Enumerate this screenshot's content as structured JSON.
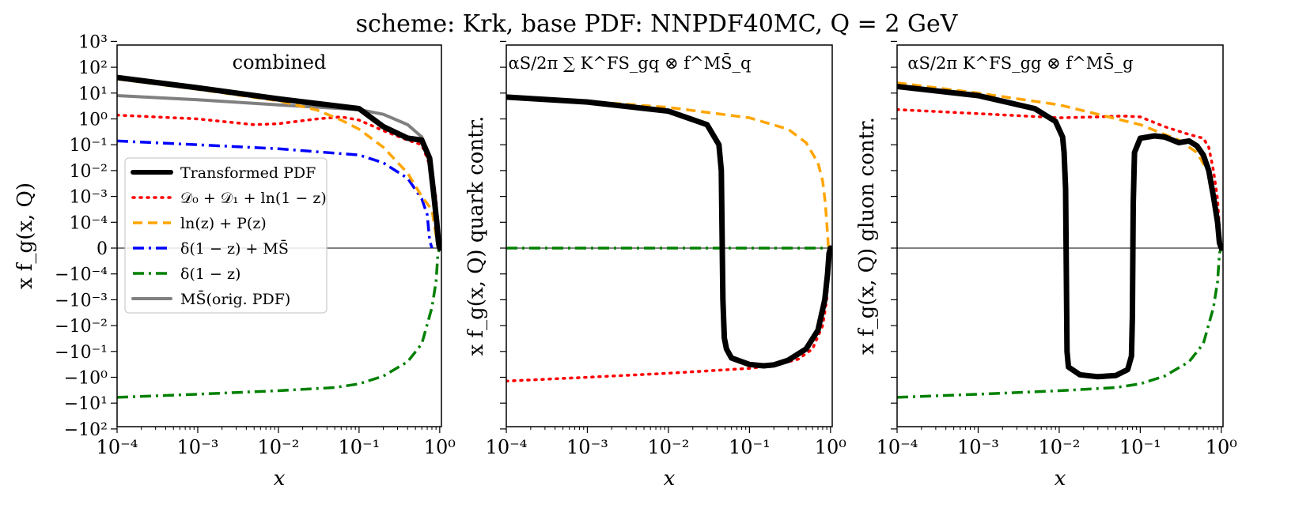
{
  "figure": {
    "title": "scheme: Krk, base PDF: NNPDF40MC, Q = 2 GeV"
  },
  "colors": {
    "transformed": "#000000",
    "d0d1": "#ff0000",
    "lnzpz": "#ffa500",
    "delta_msbar": "#0000ff",
    "delta": "#008000",
    "msbar": "#808080"
  },
  "chart_data": [
    {
      "type": "line",
      "panel": "left",
      "title": "combined",
      "xlabel": "x",
      "ylabel": "x f_g(x, Q)",
      "xscale": "log",
      "yscale": "symlog",
      "xlim": [
        0.0001,
        1.05
      ],
      "x_ticks": [
        "10⁻⁴",
        "10⁻³",
        "10⁻²",
        "10⁻¹",
        "10⁰"
      ],
      "y_ticks": [
        "10³",
        "10²",
        "10¹",
        "10⁰",
        "10⁻¹",
        "10⁻²",
        "10⁻³",
        "10⁻⁴",
        "0",
        "−10⁻⁴",
        "−10⁻³",
        "−10⁻²",
        "−10⁻¹",
        "−10⁰",
        "−10¹",
        "−10²"
      ],
      "legend_position": "center-left",
      "legend": [
        {
          "name": "Transformed PDF",
          "style": "solid-thick",
          "color_key": "transformed"
        },
        {
          "name": "𝒟₀ + 𝒟₁ + ln(1 − z)",
          "style": "dotted",
          "color_key": "d0d1"
        },
        {
          "name": "ln(z) + P(z)",
          "style": "dashed",
          "color_key": "lnzpz"
        },
        {
          "name": "δ(1 − z) + MS̄",
          "style": "dashdot",
          "color_key": "delta_msbar"
        },
        {
          "name": "δ(1 − z)",
          "style": "dashdot",
          "color_key": "delta"
        },
        {
          "name": "MS̄(orig. PDF)",
          "style": "solid",
          "color_key": "msbar"
        }
      ],
      "series": [
        {
          "key": "transformed",
          "x": [
            0.0001,
            0.001,
            0.01,
            0.1,
            0.2,
            0.4,
            0.6,
            0.75,
            0.85,
            0.92,
            0.96,
            0.98,
            1.0
          ],
          "y": [
            40,
            16,
            6,
            2.5,
            0.5,
            0.18,
            0.15,
            0.03,
            0.001,
            0.0001,
            3e-05,
            1e-05,
            0
          ]
        },
        {
          "key": "d0d1",
          "x": [
            0.0001,
            0.001,
            0.005,
            0.01,
            0.03,
            0.06,
            0.1,
            0.2,
            0.4,
            0.6,
            0.8,
            0.9,
            0.96,
            1.0
          ],
          "y": [
            1.4,
            1.0,
            0.6,
            0.65,
            1.0,
            1.2,
            0.9,
            0.35,
            0.15,
            0.1,
            0.01,
            0.0008,
            5e-05,
            0
          ]
        },
        {
          "key": "lnzpz",
          "x": [
            0.0001,
            0.001,
            0.01,
            0.03,
            0.06,
            0.1,
            0.2,
            0.4,
            0.6,
            0.8,
            0.9,
            0.95,
            1.0
          ],
          "y": [
            35,
            14,
            5,
            2.2,
            0.9,
            0.4,
            0.08,
            0.008,
            0.001,
            0.0003,
            5e-05,
            1e-05,
            0
          ]
        },
        {
          "key": "delta_msbar",
          "x": [
            0.0001,
            0.001,
            0.01,
            0.1,
            0.2,
            0.4,
            0.6,
            0.7,
            0.75,
            0.8
          ],
          "y": [
            0.14,
            0.1,
            0.07,
            0.04,
            0.02,
            0.005,
            0.0008,
            0.0002,
            3e-05,
            0
          ]
        },
        {
          "key": "delta",
          "x": [
            0.0001,
            0.001,
            0.01,
            0.05,
            0.1,
            0.2,
            0.4,
            0.6,
            0.8,
            0.9,
            0.95,
            1.0
          ],
          "y": [
            -6,
            -4.5,
            -3.3,
            -2.5,
            -1.8,
            -0.9,
            -0.25,
            -0.05,
            -0.002,
            -0.0002,
            -2e-05,
            0
          ]
        },
        {
          "key": "msbar",
          "x": [
            0.0001,
            0.001,
            0.01,
            0.1,
            0.2,
            0.4,
            0.6,
            0.75,
            0.85,
            0.95,
            1.0
          ],
          "y": [
            8,
            5.5,
            3.5,
            2.3,
            1.5,
            0.6,
            0.2,
            0.03,
            0.001,
            3e-05,
            0
          ]
        }
      ]
    },
    {
      "type": "line",
      "panel": "middle",
      "title": "αS/2π ∑ K^FS_gq ⊗ f^MS̄_q",
      "xlabel": "x",
      "ylabel": "x f_g(x, Q)  quark contr.",
      "xscale": "log",
      "yscale": "symlog",
      "xlim": [
        0.0001,
        1.05
      ],
      "x_ticks": [
        "10⁻⁴",
        "10⁻³",
        "10⁻²",
        "10⁻¹",
        "10⁰"
      ],
      "series": [
        {
          "key": "transformed",
          "x": [
            0.0001,
            0.001,
            0.01,
            0.03,
            0.042,
            0.045,
            0.047,
            0.049,
            0.052,
            0.06,
            0.1,
            0.15,
            0.2,
            0.3,
            0.5,
            0.7,
            0.85,
            0.92,
            0.96,
            1.0
          ],
          "y": [
            7,
            4.5,
            2.0,
            0.6,
            0.1,
            0.01,
            -0.001,
            -0.03,
            -0.08,
            -0.18,
            -0.32,
            -0.36,
            -0.33,
            -0.22,
            -0.08,
            -0.015,
            -0.001,
            -0.0001,
            -2e-05,
            0
          ]
        },
        {
          "key": "d0d1",
          "x": [
            0.0001,
            0.001,
            0.01,
            0.1,
            0.2,
            0.4,
            0.6,
            0.8,
            0.9,
            0.96,
            1.0
          ],
          "y": [
            -1.4,
            -1.0,
            -0.7,
            -0.45,
            -0.35,
            -0.2,
            -0.08,
            -0.01,
            -0.001,
            -5e-05,
            0
          ]
        },
        {
          "key": "lnzpz",
          "x": [
            0.0001,
            0.001,
            0.01,
            0.1,
            0.3,
            0.5,
            0.7,
            0.8,
            0.86,
            0.9,
            0.94,
            1.0
          ],
          "y": [
            7.5,
            4.8,
            2.8,
            1.1,
            0.4,
            0.12,
            0.02,
            0.004,
            0.0006,
            0.0001,
            5e-06,
            0
          ]
        },
        {
          "key": "delta",
          "x": [
            0.0001,
            1.0
          ],
          "y": [
            0,
            0
          ]
        }
      ]
    },
    {
      "type": "line",
      "panel": "right",
      "title": "αS/2π K^FS_gg ⊗ f^MS̄_g",
      "xlabel": "x",
      "ylabel": "x f_g(x, Q)  gluon contr.",
      "xscale": "log",
      "yscale": "symlog",
      "xlim": [
        0.0001,
        1.05
      ],
      "x_ticks": [
        "10⁻⁴",
        "10⁻³",
        "10⁻²",
        "10⁻¹",
        "10⁰"
      ],
      "series": [
        {
          "key": "transformed",
          "x": [
            0.0001,
            0.001,
            0.005,
            0.009,
            0.011,
            0.0115,
            0.012,
            0.0125,
            0.013,
            0.018,
            0.03,
            0.05,
            0.07,
            0.078,
            0.08,
            0.082,
            0.085,
            0.1,
            0.15,
            0.2,
            0.3,
            0.4,
            0.5,
            0.6,
            0.7,
            0.8,
            0.9,
            0.95,
            1.0
          ],
          "y": [
            18,
            8,
            2.5,
            0.8,
            0.2,
            0.05,
            0.002,
            -0.1,
            -0.4,
            -0.8,
            -0.95,
            -0.85,
            -0.5,
            -0.15,
            -0.005,
            0.0005,
            0.05,
            0.18,
            0.22,
            0.2,
            0.12,
            0.14,
            0.09,
            0.04,
            0.01,
            0.001,
            0.0001,
            2e-05,
            0
          ]
        },
        {
          "key": "d0d1",
          "x": [
            0.0001,
            0.001,
            0.01,
            0.03,
            0.06,
            0.1,
            0.2,
            0.4,
            0.6,
            0.7,
            0.8,
            0.9,
            0.96,
            1.0
          ],
          "y": [
            2.3,
            1.6,
            1.1,
            1.2,
            1.3,
            1.2,
            0.5,
            0.25,
            0.18,
            0.08,
            0.01,
            0.0008,
            5e-05,
            0
          ]
        },
        {
          "key": "lnzpz",
          "x": [
            0.0001,
            0.001,
            0.01,
            0.1,
            0.3,
            0.5,
            0.7,
            0.8,
            0.9,
            0.95,
            1.0
          ],
          "y": [
            25,
            10,
            3.5,
            0.6,
            0.15,
            0.05,
            0.008,
            0.001,
            0.0001,
            1e-05,
            0
          ]
        },
        {
          "key": "delta",
          "x": [
            0.0001,
            0.001,
            0.01,
            0.05,
            0.1,
            0.2,
            0.4,
            0.6,
            0.8,
            0.9,
            0.95,
            1.0
          ],
          "y": [
            -6,
            -4.5,
            -3.3,
            -2.5,
            -1.8,
            -0.9,
            -0.25,
            -0.05,
            -0.002,
            -0.0002,
            -2e-05,
            0
          ]
        }
      ]
    }
  ]
}
